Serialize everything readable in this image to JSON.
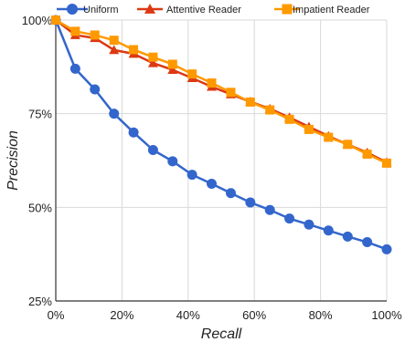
{
  "chart_data": {
    "type": "line",
    "xlabel": "Recall",
    "ylabel": "Precision",
    "xlim": [
      0,
      100
    ],
    "ylim": [
      25,
      100
    ],
    "x_ticks": [
      "0%",
      "20%",
      "40%",
      "60%",
      "80%",
      "100%"
    ],
    "y_ticks": [
      "25%",
      "50%",
      "75%",
      "100%"
    ],
    "grid": true,
    "legend": "top",
    "x": [
      0,
      5.9,
      11.8,
      17.6,
      23.5,
      29.4,
      35.3,
      41.2,
      47.1,
      52.9,
      58.8,
      64.7,
      70.6,
      76.5,
      82.4,
      88.2,
      94.1,
      100
    ],
    "series": [
      {
        "name": "Uniform",
        "color": "#3366cc",
        "marker": "circle",
        "values": [
          100,
          87,
          81.5,
          75,
          70,
          65.3,
          62.3,
          58.7,
          56.3,
          53.8,
          51.3,
          49.3,
          47,
          45.4,
          43.8,
          42.2,
          40.7,
          38.8
        ]
      },
      {
        "name": "Attentive Reader",
        "color": "#dc3912",
        "marker": "triangle",
        "values": [
          100,
          96,
          95.2,
          92,
          91,
          88.5,
          86.7,
          84.5,
          82.2,
          80.2,
          78.2,
          76.3,
          74,
          71.5,
          69,
          66.8,
          64.6,
          62
        ]
      },
      {
        "name": "Impatient Reader",
        "color": "#ff9900",
        "marker": "square",
        "values": [
          100,
          97,
          96,
          94.6,
          92.1,
          90.1,
          88.2,
          85.6,
          83.2,
          80.7,
          78.1,
          76,
          73.5,
          70.8,
          68.7,
          66.8,
          64.2,
          61.8
        ]
      }
    ]
  }
}
